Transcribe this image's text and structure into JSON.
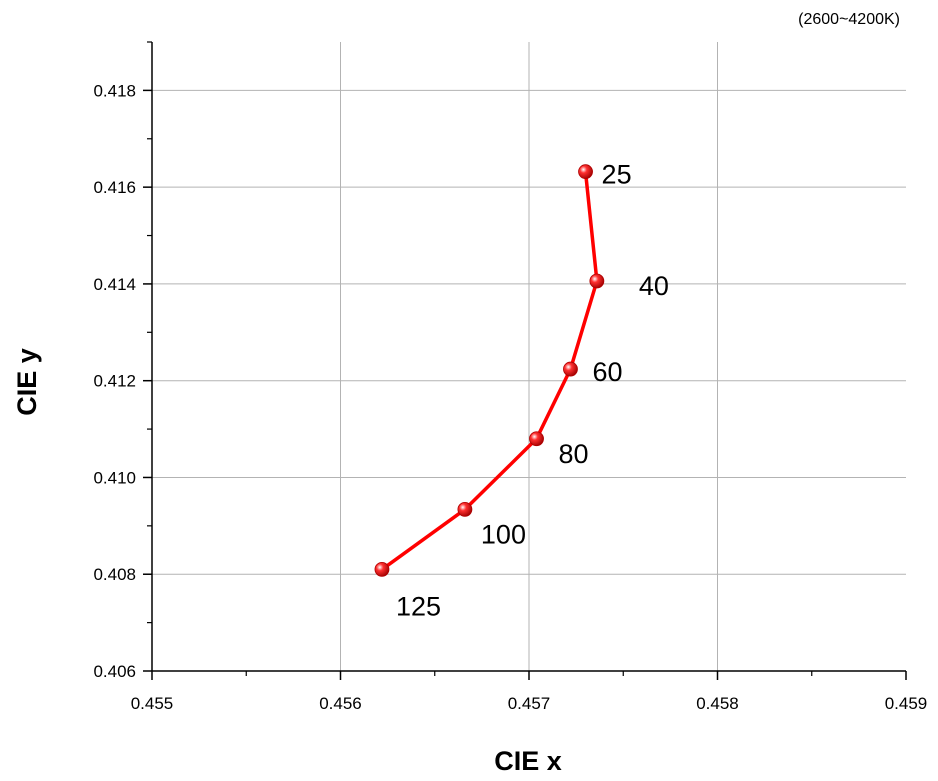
{
  "chart_data": {
    "type": "line",
    "title": "",
    "note": "(2600~4200K)",
    "xlabel": "CIE x",
    "ylabel": "CIE y",
    "xlim": [
      0.455,
      0.459
    ],
    "ylim": [
      0.406,
      0.419
    ],
    "xticks": [
      "0.455",
      "0.456",
      "0.457",
      "0.458",
      "0.459"
    ],
    "yticks": [
      "0.406",
      "0.408",
      "0.410",
      "0.412",
      "0.414",
      "0.416",
      "0.418"
    ],
    "grid": true,
    "series": [
      {
        "color": "#ff0000",
        "points": [
          {
            "label": "25",
            "x": 0.4573,
            "y": 0.41632
          },
          {
            "label": "40",
            "x": 0.45736,
            "y": 0.41406
          },
          {
            "label": "60",
            "x": 0.45722,
            "y": 0.41224
          },
          {
            "label": "80",
            "x": 0.45704,
            "y": 0.4108
          },
          {
            "label": "100",
            "x": 0.45666,
            "y": 0.40934
          },
          {
            "label": "125",
            "x": 0.45622,
            "y": 0.4081
          }
        ]
      }
    ]
  }
}
